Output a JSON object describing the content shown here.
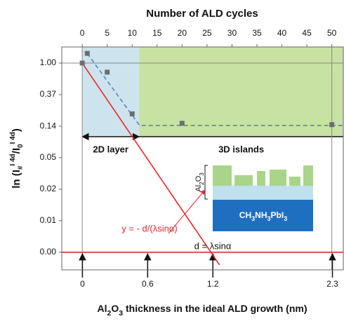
{
  "chart_data": {
    "type": "line",
    "title": "Number of ALD cycles",
    "x_label": "Al2O3 thickness in the ideal ALD growth (nm)",
    "y_label": [
      "ln (I",
      "#",
      "I 4d",
      "/I",
      "0",
      "I 4d",
      ")"
    ],
    "xlim": [
      -4.1,
      52.3
    ],
    "xticks": [
      0,
      5,
      10,
      15,
      20,
      25,
      30,
      35,
      40,
      45,
      50
    ],
    "x2lim": [
      -0.19,
      2.4
    ],
    "x2ticks": [
      0,
      0.6,
      1.2,
      2.3
    ],
    "ylim": [
      0.00142,
      1.667
    ],
    "log_y": true,
    "yticks": [
      {
        "value": 1,
        "label": "1.00"
      },
      {
        "value": 0.368,
        "label": "0.37"
      },
      {
        "value": 0.135,
        "label": "0.14"
      },
      {
        "value": 0.0498,
        "label": "0.05"
      },
      {
        "value": 0.0183,
        "label": "0.02"
      },
      {
        "value": 0.00674,
        "label": "0.01"
      },
      {
        "value": 0.00248,
        "label": "0.00"
      }
    ],
    "hlines": [
      1
    ],
    "vlines": [
      0,
      50
    ],
    "regions": [
      {
        "x": [
          0,
          11.4
        ],
        "ylim": [
          0.097,
          1.667
        ],
        "color": "#cde4ee"
      },
      {
        "x": [
          11.4,
          52.3
        ],
        "ylim": [
          0.097,
          1.667
        ],
        "color": "#c8e2a3"
      }
    ],
    "series": [
      {
        "type": "scatter",
        "color": "#6d6d6d",
        "x": [
          0,
          1,
          5,
          10,
          20,
          50
        ],
        "values": [
          1,
          1.36,
          0.75,
          0.2,
          0.148,
          0.142
        ]
      },
      {
        "color": "#5a80c8",
        "dashed": true,
        "x": [
          1,
          11.5,
          52.3
        ],
        "values": [
          1.36,
          0.138,
          0.138
        ]
      },
      {
        "color": "#e8262a",
        "x": [
          0,
          27.5
        ],
        "values": [
          1,
          0.00166
        ]
      },
      {
        "color": "#e8262a",
        "x": [
          -4.1,
          52.3
        ],
        "values": [
          0.00248,
          0.00248
        ]
      }
    ],
    "annotations": {
      "layer": "2D layer",
      "islands": "3D islands",
      "equation": "y = - d/(λsinα)",
      "d": "d = λsinα",
      "coating": "Al2O3",
      "perovskite": "CH3NH3PbI3"
    }
  }
}
